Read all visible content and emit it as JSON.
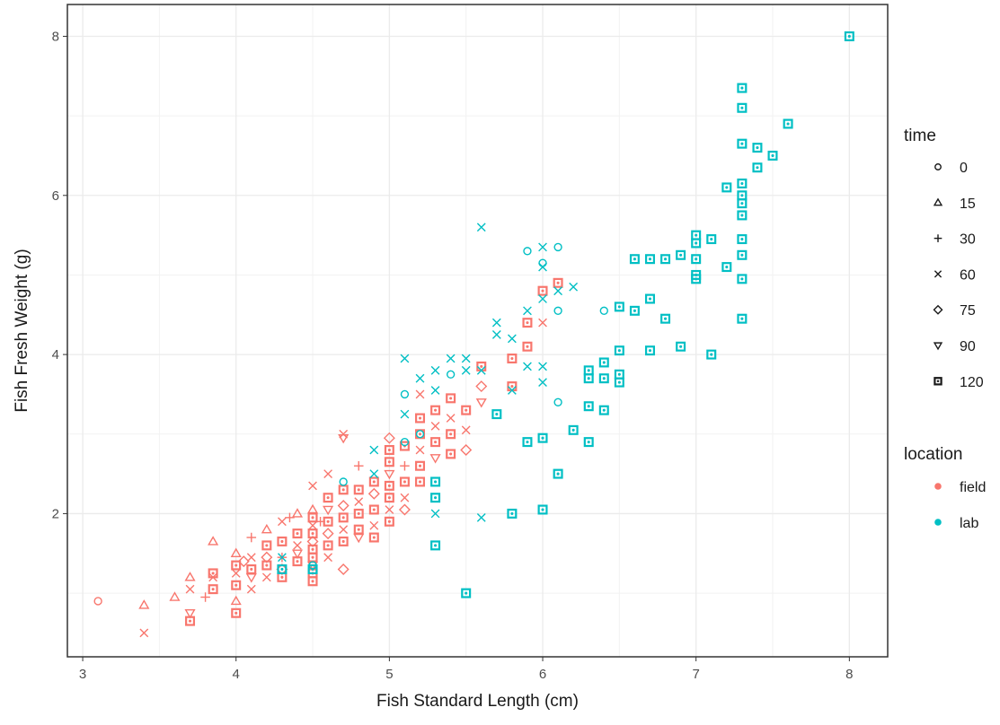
{
  "chart_data": {
    "type": "scatter",
    "xlabel": "Fish Standard Length (cm)",
    "ylabel": "Fish Fresh Weight (g)",
    "xlim": [
      2.9,
      8.25
    ],
    "ylim": [
      0.2,
      8.4
    ],
    "x_ticks": [
      "3",
      "4",
      "5",
      "6",
      "7",
      "8"
    ],
    "y_ticks": [
      "2",
      "4",
      "6",
      "8"
    ],
    "grid": true,
    "legend_placement": "right",
    "legends": {
      "time": {
        "title": "time",
        "entries": [
          {
            "label": "0",
            "shape": "circle"
          },
          {
            "label": "15",
            "shape": "triangle"
          },
          {
            "label": "30",
            "shape": "plus"
          },
          {
            "label": "60",
            "shape": "cross"
          },
          {
            "label": "75",
            "shape": "diamond"
          },
          {
            "label": "90",
            "shape": "triangle-down"
          },
          {
            "label": "120",
            "shape": "square-dot"
          }
        ]
      },
      "location": {
        "title": "location",
        "entries": [
          {
            "label": "field",
            "color": "#F8766D"
          },
          {
            "label": "lab",
            "color": "#00BFC4"
          }
        ]
      }
    },
    "series": [
      {
        "name": "field",
        "color": "#F8766D",
        "points": [
          [
            3.1,
            0.9,
            "0"
          ],
          [
            3.4,
            0.85,
            "15"
          ],
          [
            3.4,
            0.5,
            "60"
          ],
          [
            3.6,
            0.95,
            "15"
          ],
          [
            3.7,
            1.2,
            "15"
          ],
          [
            3.7,
            1.05,
            "60"
          ],
          [
            3.7,
            0.75,
            "90"
          ],
          [
            3.7,
            0.65,
            "120"
          ],
          [
            3.8,
            0.95,
            "30"
          ],
          [
            3.85,
            1.25,
            "120"
          ],
          [
            3.85,
            1.2,
            "60"
          ],
          [
            3.85,
            1.05,
            "120"
          ],
          [
            3.85,
            1.65,
            "15"
          ],
          [
            4.0,
            1.5,
            "15"
          ],
          [
            4.0,
            1.35,
            "120"
          ],
          [
            4.0,
            1.25,
            "60"
          ],
          [
            4.0,
            1.1,
            "120"
          ],
          [
            4.0,
            0.9,
            "15"
          ],
          [
            4.0,
            0.75,
            "120"
          ],
          [
            4.05,
            1.4,
            "75"
          ],
          [
            4.1,
            1.7,
            "30"
          ],
          [
            4.1,
            1.45,
            "60"
          ],
          [
            4.1,
            1.3,
            "120"
          ],
          [
            4.1,
            1.2,
            "90"
          ],
          [
            4.1,
            1.05,
            "60"
          ],
          [
            4.2,
            1.8,
            "15"
          ],
          [
            4.2,
            1.6,
            "120"
          ],
          [
            4.2,
            1.45,
            "75"
          ],
          [
            4.2,
            1.35,
            "120"
          ],
          [
            4.2,
            1.2,
            "60"
          ],
          [
            4.3,
            1.9,
            "60"
          ],
          [
            4.3,
            1.65,
            "120"
          ],
          [
            4.3,
            1.45,
            "30"
          ],
          [
            4.3,
            1.3,
            "75"
          ],
          [
            4.3,
            1.2,
            "120"
          ],
          [
            4.35,
            1.95,
            "30"
          ],
          [
            4.4,
            2.0,
            "15"
          ],
          [
            4.4,
            1.75,
            "120"
          ],
          [
            4.4,
            1.6,
            "60"
          ],
          [
            4.4,
            1.5,
            "90"
          ],
          [
            4.4,
            1.4,
            "120"
          ],
          [
            4.5,
            2.05,
            "15"
          ],
          [
            4.5,
            1.95,
            "120"
          ],
          [
            4.5,
            1.85,
            "60"
          ],
          [
            4.5,
            1.75,
            "120"
          ],
          [
            4.5,
            1.65,
            "75"
          ],
          [
            4.5,
            1.55,
            "120"
          ],
          [
            4.5,
            1.45,
            "120"
          ],
          [
            4.5,
            1.35,
            "90"
          ],
          [
            4.5,
            1.25,
            "120"
          ],
          [
            4.5,
            1.15,
            "120"
          ],
          [
            4.5,
            2.35,
            "60"
          ],
          [
            4.55,
            1.9,
            "30"
          ],
          [
            4.6,
            2.5,
            "60"
          ],
          [
            4.6,
            2.2,
            "120"
          ],
          [
            4.6,
            2.05,
            "90"
          ],
          [
            4.6,
            1.9,
            "120"
          ],
          [
            4.6,
            1.75,
            "75"
          ],
          [
            4.6,
            1.6,
            "120"
          ],
          [
            4.6,
            1.45,
            "60"
          ],
          [
            4.7,
            3.0,
            "60"
          ],
          [
            4.7,
            2.95,
            "90"
          ],
          [
            4.7,
            2.3,
            "120"
          ],
          [
            4.7,
            2.1,
            "75"
          ],
          [
            4.7,
            1.95,
            "120"
          ],
          [
            4.7,
            1.8,
            "60"
          ],
          [
            4.7,
            1.65,
            "120"
          ],
          [
            4.7,
            1.3,
            "75"
          ],
          [
            4.8,
            2.6,
            "30"
          ],
          [
            4.8,
            2.3,
            "120"
          ],
          [
            4.8,
            2.15,
            "60"
          ],
          [
            4.8,
            2.0,
            "120"
          ],
          [
            4.8,
            1.8,
            "120"
          ],
          [
            4.8,
            1.7,
            "90"
          ],
          [
            4.9,
            2.4,
            "120"
          ],
          [
            4.9,
            2.25,
            "75"
          ],
          [
            4.9,
            2.05,
            "120"
          ],
          [
            4.9,
            1.85,
            "60"
          ],
          [
            4.9,
            1.7,
            "120"
          ],
          [
            5.0,
            2.95,
            "75"
          ],
          [
            5.0,
            2.8,
            "120"
          ],
          [
            5.0,
            2.65,
            "120"
          ],
          [
            5.0,
            2.5,
            "90"
          ],
          [
            5.0,
            2.35,
            "120"
          ],
          [
            5.0,
            2.2,
            "120"
          ],
          [
            5.0,
            2.05,
            "60"
          ],
          [
            5.0,
            1.9,
            "120"
          ],
          [
            5.1,
            2.85,
            "120"
          ],
          [
            5.1,
            2.6,
            "30"
          ],
          [
            5.1,
            2.4,
            "120"
          ],
          [
            5.1,
            2.2,
            "60"
          ],
          [
            5.1,
            2.05,
            "75"
          ],
          [
            5.2,
            3.5,
            "60"
          ],
          [
            5.2,
            3.2,
            "120"
          ],
          [
            5.2,
            3.0,
            "120"
          ],
          [
            5.2,
            2.8,
            "60"
          ],
          [
            5.2,
            2.6,
            "120"
          ],
          [
            5.2,
            2.4,
            "120"
          ],
          [
            5.3,
            3.3,
            "120"
          ],
          [
            5.3,
            3.1,
            "60"
          ],
          [
            5.3,
            2.9,
            "120"
          ],
          [
            5.3,
            2.7,
            "90"
          ],
          [
            5.4,
            3.45,
            "120"
          ],
          [
            5.4,
            3.2,
            "60"
          ],
          [
            5.4,
            3.0,
            "120"
          ],
          [
            5.4,
            2.75,
            "120"
          ],
          [
            5.5,
            3.3,
            "120"
          ],
          [
            5.5,
            3.05,
            "60"
          ],
          [
            5.5,
            2.8,
            "75"
          ],
          [
            5.6,
            3.85,
            "120"
          ],
          [
            5.6,
            3.6,
            "75"
          ],
          [
            5.6,
            3.4,
            "90"
          ],
          [
            5.8,
            3.95,
            "120"
          ],
          [
            5.8,
            3.6,
            "120"
          ],
          [
            5.9,
            4.4,
            "120"
          ],
          [
            5.9,
            4.1,
            "120"
          ],
          [
            6.0,
            4.8,
            "120"
          ],
          [
            6.0,
            4.4,
            "60"
          ],
          [
            6.1,
            4.9,
            "120"
          ]
        ]
      },
      {
        "name": "lab",
        "color": "#00BFC4",
        "points": [
          [
            4.3,
            1.3,
            "120"
          ],
          [
            4.3,
            1.45,
            "60"
          ],
          [
            4.5,
            1.35,
            "0"
          ],
          [
            4.5,
            1.3,
            "120"
          ],
          [
            4.7,
            2.4,
            "0"
          ],
          [
            4.9,
            2.5,
            "60"
          ],
          [
            4.9,
            2.8,
            "60"
          ],
          [
            5.1,
            3.5,
            "0"
          ],
          [
            5.1,
            3.25,
            "60"
          ],
          [
            5.1,
            3.95,
            "60"
          ],
          [
            5.1,
            2.9,
            "0"
          ],
          [
            5.2,
            3.7,
            "60"
          ],
          [
            5.2,
            3.0,
            "0"
          ],
          [
            5.3,
            3.8,
            "60"
          ],
          [
            5.3,
            3.55,
            "60"
          ],
          [
            5.3,
            2.4,
            "120"
          ],
          [
            5.3,
            2.2,
            "120"
          ],
          [
            5.3,
            2.0,
            "60"
          ],
          [
            5.3,
            1.6,
            "120"
          ],
          [
            5.4,
            3.95,
            "60"
          ],
          [
            5.4,
            3.75,
            "0"
          ],
          [
            5.5,
            3.95,
            "60"
          ],
          [
            5.5,
            3.8,
            "60"
          ],
          [
            5.5,
            1.0,
            "120"
          ],
          [
            5.6,
            5.6,
            "60"
          ],
          [
            5.6,
            3.8,
            "60"
          ],
          [
            5.6,
            1.95,
            "60"
          ],
          [
            5.7,
            4.4,
            "60"
          ],
          [
            5.7,
            4.25,
            "60"
          ],
          [
            5.7,
            3.25,
            "120"
          ],
          [
            5.8,
            4.2,
            "60"
          ],
          [
            5.8,
            3.55,
            "60"
          ],
          [
            5.8,
            2.0,
            "120"
          ],
          [
            5.9,
            5.3,
            "0"
          ],
          [
            5.9,
            4.55,
            "60"
          ],
          [
            5.9,
            3.85,
            "60"
          ],
          [
            5.9,
            2.9,
            "120"
          ],
          [
            6.0,
            5.35,
            "60"
          ],
          [
            6.0,
            5.1,
            "60"
          ],
          [
            6.0,
            5.15,
            "0"
          ],
          [
            6.0,
            4.7,
            "60"
          ],
          [
            6.0,
            3.85,
            "60"
          ],
          [
            6.0,
            3.65,
            "60"
          ],
          [
            6.0,
            2.95,
            "120"
          ],
          [
            6.0,
            2.05,
            "120"
          ],
          [
            6.1,
            5.35,
            "0"
          ],
          [
            6.1,
            4.8,
            "60"
          ],
          [
            6.1,
            4.55,
            "0"
          ],
          [
            6.1,
            3.4,
            "0"
          ],
          [
            6.1,
            2.5,
            "120"
          ],
          [
            6.2,
            4.85,
            "60"
          ],
          [
            6.2,
            3.05,
            "120"
          ],
          [
            6.3,
            3.8,
            "120"
          ],
          [
            6.3,
            3.7,
            "120"
          ],
          [
            6.3,
            3.35,
            "120"
          ],
          [
            6.3,
            2.9,
            "120"
          ],
          [
            6.4,
            4.55,
            "0"
          ],
          [
            6.4,
            3.9,
            "120"
          ],
          [
            6.4,
            3.7,
            "120"
          ],
          [
            6.4,
            3.3,
            "120"
          ],
          [
            6.5,
            4.6,
            "120"
          ],
          [
            6.5,
            4.05,
            "120"
          ],
          [
            6.5,
            3.75,
            "120"
          ],
          [
            6.5,
            3.65,
            "120"
          ],
          [
            6.6,
            4.55,
            "120"
          ],
          [
            6.6,
            5.2,
            "120"
          ],
          [
            6.7,
            5.2,
            "120"
          ],
          [
            6.7,
            4.7,
            "120"
          ],
          [
            6.7,
            4.05,
            "120"
          ],
          [
            6.8,
            5.2,
            "120"
          ],
          [
            6.8,
            4.45,
            "120"
          ],
          [
            6.9,
            5.25,
            "120"
          ],
          [
            6.9,
            4.1,
            "120"
          ],
          [
            7.0,
            5.5,
            "120"
          ],
          [
            7.0,
            5.4,
            "120"
          ],
          [
            7.0,
            5.2,
            "120"
          ],
          [
            7.0,
            5.0,
            "120"
          ],
          [
            7.0,
            4.95,
            "120"
          ],
          [
            7.1,
            5.45,
            "120"
          ],
          [
            7.1,
            4.0,
            "120"
          ],
          [
            7.2,
            6.1,
            "120"
          ],
          [
            7.2,
            5.1,
            "120"
          ],
          [
            7.3,
            7.35,
            "120"
          ],
          [
            7.3,
            7.1,
            "120"
          ],
          [
            7.3,
            6.65,
            "120"
          ],
          [
            7.3,
            6.15,
            "120"
          ],
          [
            7.3,
            6.0,
            "120"
          ],
          [
            7.3,
            5.9,
            "120"
          ],
          [
            7.3,
            5.75,
            "120"
          ],
          [
            7.3,
            5.45,
            "120"
          ],
          [
            7.3,
            5.25,
            "120"
          ],
          [
            7.3,
            4.95,
            "120"
          ],
          [
            7.3,
            4.45,
            "120"
          ],
          [
            7.4,
            6.6,
            "120"
          ],
          [
            7.4,
            6.35,
            "120"
          ],
          [
            7.5,
            6.5,
            "120"
          ],
          [
            7.6,
            6.9,
            "120"
          ],
          [
            8.0,
            8.0,
            "120"
          ]
        ]
      }
    ]
  }
}
